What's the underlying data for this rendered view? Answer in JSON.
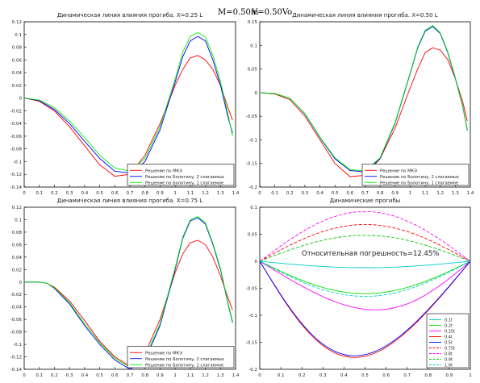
{
  "header": {
    "mass_label": "M=0.50m",
    "speed_label": "V=0.50Vo"
  },
  "chart_data": [
    {
      "type": "line",
      "title": "Динамическая линия влияния прогиба. X=0.25 L",
      "xlim": [
        0,
        1.4
      ],
      "ylim": [
        -0.14,
        0.12
      ],
      "xticks": [
        "0",
        "0.1",
        "0.2",
        "0.3",
        "0.4",
        "0.5",
        "0.6",
        "0.7",
        "0.8",
        "0.9",
        "1",
        "1.1",
        "1.2",
        "1.3",
        "1.4"
      ],
      "yticks": [
        "-0.14",
        "-0.12",
        "-0.1",
        "-0.08",
        "-0.06",
        "-0.04",
        "-0.02",
        "0",
        "0.02",
        "0.04",
        "0.06",
        "0.08",
        "0.1",
        "0.12"
      ],
      "legend_position": "bottom-right",
      "series": [
        {
          "name": "Решение по МКЭ",
          "color": "#ff0000",
          "x": [
            0,
            0.1,
            0.2,
            0.3,
            0.4,
            0.5,
            0.6,
            0.7,
            0.8,
            0.9,
            1.0,
            1.05,
            1.1,
            1.15,
            1.2,
            1.25,
            1.3,
            1.35,
            1.38
          ],
          "y": [
            0,
            -0.005,
            -0.02,
            -0.045,
            -0.075,
            -0.105,
            -0.123,
            -0.12,
            -0.09,
            -0.04,
            0.02,
            0.045,
            0.063,
            0.067,
            0.06,
            0.045,
            0.02,
            -0.015,
            -0.035
          ]
        },
        {
          "name": "Решение по Болотину, 2 слагаемых",
          "color": "#0000ff",
          "x": [
            0,
            0.1,
            0.2,
            0.3,
            0.4,
            0.5,
            0.6,
            0.7,
            0.8,
            0.9,
            1.0,
            1.05,
            1.1,
            1.15,
            1.2,
            1.25,
            1.3,
            1.35,
            1.38
          ],
          "y": [
            0,
            -0.004,
            -0.018,
            -0.04,
            -0.068,
            -0.095,
            -0.115,
            -0.118,
            -0.1,
            -0.05,
            0.025,
            0.065,
            0.09,
            0.097,
            0.09,
            0.06,
            0.02,
            -0.03,
            -0.055
          ]
        },
        {
          "name": "Решение по Болотину, 1 слагаемое",
          "color": "#00ee00",
          "x": [
            0,
            0.1,
            0.2,
            0.3,
            0.4,
            0.5,
            0.6,
            0.7,
            0.8,
            0.9,
            1.0,
            1.05,
            1.1,
            1.15,
            1.2,
            1.25,
            1.3,
            1.35,
            1.38
          ],
          "y": [
            0,
            -0.003,
            -0.015,
            -0.036,
            -0.062,
            -0.09,
            -0.11,
            -0.115,
            -0.095,
            -0.045,
            0.03,
            0.072,
            0.097,
            0.103,
            0.096,
            0.067,
            0.026,
            -0.025,
            -0.06
          ]
        }
      ]
    },
    {
      "type": "line",
      "title": "Динамическая линия влияния прогиба. X=0.50 L",
      "xlim": [
        0,
        1.4
      ],
      "ylim": [
        -0.2,
        0.15
      ],
      "xticks": [
        "0",
        "0.1",
        "0.2",
        "0.3",
        "0.4",
        "0.5",
        "0.6",
        "0.7",
        "0.8",
        "0.9",
        "1",
        "1.1",
        "1.2",
        "1.3",
        "1.4"
      ],
      "yticks": [
        "-0.2",
        "-0.15",
        "-0.1",
        "-0.05",
        "0",
        "0.05",
        "0.1",
        "0.15"
      ],
      "legend_position": "bottom-right",
      "series": [
        {
          "name": "Решение по МКЭ",
          "color": "#ff0000",
          "x": [
            0,
            0.1,
            0.2,
            0.3,
            0.4,
            0.5,
            0.6,
            0.7,
            0.8,
            0.9,
            1.0,
            1.05,
            1.1,
            1.15,
            1.2,
            1.25,
            1.3,
            1.35,
            1.38
          ],
          "y": [
            0,
            -0.003,
            -0.015,
            -0.05,
            -0.1,
            -0.15,
            -0.178,
            -0.175,
            -0.14,
            -0.075,
            0.01,
            0.05,
            0.085,
            0.095,
            0.09,
            0.07,
            0.03,
            -0.02,
            -0.06
          ]
        },
        {
          "name": "Решение по Болотину, 2 слагаемых",
          "color": "#0000ff",
          "x": [
            0,
            0.1,
            0.2,
            0.3,
            0.4,
            0.5,
            0.6,
            0.7,
            0.8,
            0.9,
            1.0,
            1.05,
            1.1,
            1.15,
            1.2,
            1.25,
            1.3,
            1.35,
            1.38
          ],
          "y": [
            0,
            -0.002,
            -0.012,
            -0.045,
            -0.095,
            -0.14,
            -0.165,
            -0.168,
            -0.14,
            -0.065,
            0.04,
            0.095,
            0.13,
            0.14,
            0.125,
            0.085,
            0.03,
            -0.03,
            -0.08
          ]
        },
        {
          "name": "Решение по Болотину, 1 слагаемое",
          "color": "#00ee00",
          "x": [
            0,
            0.1,
            0.2,
            0.3,
            0.4,
            0.5,
            0.6,
            0.7,
            0.8,
            0.9,
            1.0,
            1.05,
            1.1,
            1.15,
            1.2,
            1.25,
            1.3,
            1.35,
            1.38
          ],
          "y": [
            0,
            -0.002,
            -0.012,
            -0.044,
            -0.094,
            -0.138,
            -0.163,
            -0.166,
            -0.138,
            -0.063,
            0.042,
            0.097,
            0.132,
            0.142,
            0.127,
            0.087,
            0.032,
            -0.028,
            -0.078
          ]
        }
      ]
    },
    {
      "type": "line",
      "title": "Динамическая линия влияния прогиба. X=0.75 L",
      "xlim": [
        0,
        1.4
      ],
      "ylim": [
        -0.14,
        0.12
      ],
      "xticks": [
        "0",
        "0.1",
        "0.2",
        "0.3",
        "0.4",
        "0.5",
        "0.6",
        "0.7",
        "0.8",
        "0.9",
        "1",
        "1.1",
        "1.2",
        "1.3",
        "1.4"
      ],
      "yticks": [
        "-0.14",
        "-0.12",
        "-0.1",
        "-0.08",
        "-0.06",
        "-0.04",
        "-0.02",
        "0",
        "0.02",
        "0.04",
        "0.06",
        "0.08",
        "0.1",
        "0.12"
      ],
      "legend_position": "bottom-right",
      "series": [
        {
          "name": "Решение по МКЭ",
          "color": "#ff0000",
          "x": [
            0,
            0.1,
            0.15,
            0.2,
            0.3,
            0.4,
            0.5,
            0.6,
            0.7,
            0.8,
            0.9,
            1.0,
            1.05,
            1.1,
            1.15,
            1.2,
            1.25,
            1.3,
            1.35,
            1.38
          ],
          "y": [
            0,
            0,
            -0.002,
            -0.008,
            -0.03,
            -0.062,
            -0.095,
            -0.12,
            -0.135,
            -0.115,
            -0.06,
            0.015,
            0.045,
            0.063,
            0.067,
            0.06,
            0.04,
            0.01,
            -0.025,
            -0.045
          ]
        },
        {
          "name": "Решение по Болотину, 2 слагаемых",
          "color": "#0000ff",
          "x": [
            0,
            0.1,
            0.15,
            0.2,
            0.3,
            0.4,
            0.5,
            0.6,
            0.7,
            0.8,
            0.9,
            1.0,
            1.05,
            1.1,
            1.15,
            1.2,
            1.25,
            1.3,
            1.35,
            1.38
          ],
          "y": [
            0,
            0,
            -0.002,
            -0.01,
            -0.035,
            -0.07,
            -0.1,
            -0.125,
            -0.14,
            -0.125,
            -0.07,
            0.02,
            0.07,
            0.098,
            0.103,
            0.093,
            0.06,
            0.02,
            -0.035,
            -0.065
          ]
        },
        {
          "name": "Решение по Болотину, 1 слагаемое",
          "color": "#00ee00",
          "x": [
            0,
            0.1,
            0.15,
            0.2,
            0.3,
            0.4,
            0.5,
            0.6,
            0.7,
            0.8,
            0.9,
            1.0,
            1.05,
            1.1,
            1.15,
            1.2,
            1.25,
            1.3,
            1.35,
            1.38
          ],
          "y": [
            0,
            0,
            -0.002,
            -0.009,
            -0.033,
            -0.067,
            -0.097,
            -0.122,
            -0.137,
            -0.122,
            -0.067,
            0.023,
            0.072,
            0.1,
            0.105,
            0.095,
            0.062,
            0.022,
            -0.033,
            -0.063
          ]
        }
      ]
    },
    {
      "type": "line",
      "title": "Динамические прогибы",
      "xlim": [
        0,
        1
      ],
      "ylim": [
        -0.2,
        0.1
      ],
      "xticks": [
        "0",
        "0.1",
        "0.2",
        "0.3",
        "0.4",
        "0.5",
        "0.6",
        "0.7",
        "0.8",
        "0.9",
        "1"
      ],
      "yticks": [
        "-0.2",
        "-0.15",
        "-0.1",
        "-0.05",
        "0",
        "0.05",
        "0.1"
      ],
      "legend_position": "bottom-right",
      "annotation": "Относительная погрешность=12.45%",
      "series": [
        {
          "name": "0.1t",
          "color": "#00cccc",
          "peak": -0.012,
          "skew": 0.0
        },
        {
          "name": "0.2t",
          "color": "#00dd00",
          "peak": -0.06,
          "skew": 0.0
        },
        {
          "name": "0.25t",
          "color": "#ff00ff",
          "peak": -0.09,
          "skew": -0.05
        },
        {
          "name": "0.4t",
          "color": "#ff0000",
          "peak": -0.178,
          "skew": 0.05
        },
        {
          "name": "0.5t",
          "color": "#0000ff",
          "peak": -0.175,
          "skew": 0.05
        },
        {
          "name": "0.75t",
          "color": "#ff0000",
          "dashed": true,
          "peak": 0.068,
          "skew": 0.0
        },
        {
          "name": "0.8t",
          "color": "#ff00ff",
          "dashed": true,
          "peak": 0.092,
          "skew": 0.0
        },
        {
          "name": "0.9t",
          "color": "#00cc00",
          "dashed": true,
          "peak": 0.048,
          "skew": 0.0
        },
        {
          "name": "1.0t",
          "color": "#00cccc",
          "dashed": true,
          "peak": -0.065,
          "skew": 0.0
        }
      ]
    }
  ]
}
